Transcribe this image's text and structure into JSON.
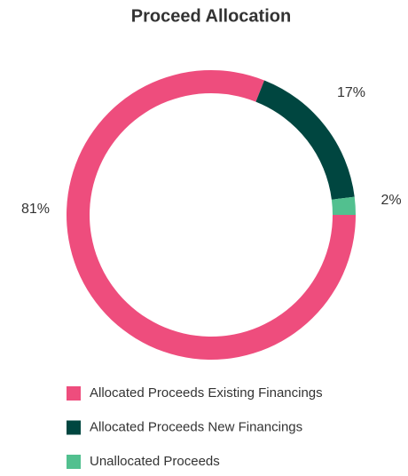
{
  "chart_data": {
    "type": "pie",
    "title": "Proceed Allocation",
    "categories": [
      "Allocated Proceeds Existing Financings",
      "Allocated Proceeds New Financings",
      "Unallocated Proceeds"
    ],
    "values": [
      81,
      17,
      2
    ],
    "value_labels": [
      "81%",
      "17%",
      "2%"
    ],
    "colors": [
      "#ee4d7d",
      "#004640",
      "#52c08f"
    ]
  }
}
